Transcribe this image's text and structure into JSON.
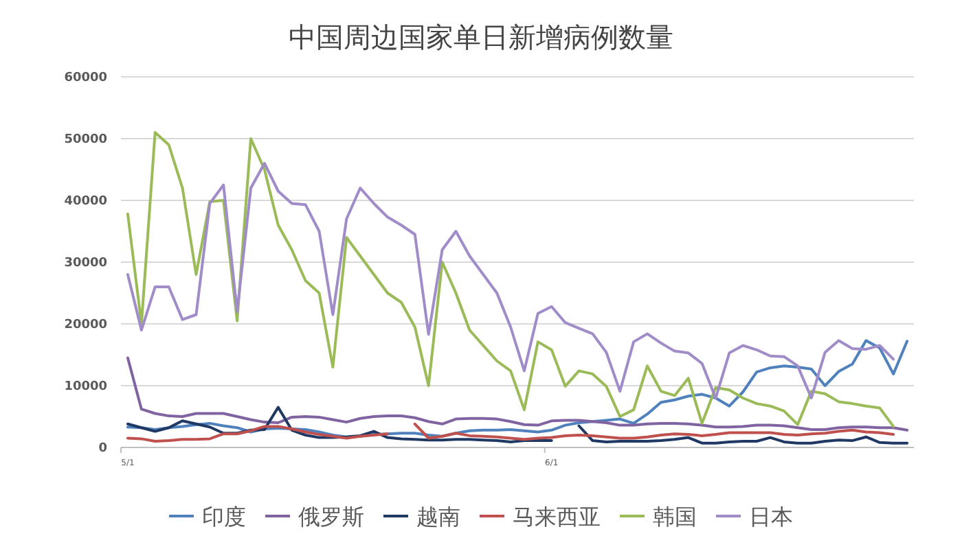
{
  "chart_data": {
    "type": "line",
    "title": "中国周边国家单日新增病例数量",
    "categories": [
      "5/1",
      null,
      null,
      null,
      null,
      null,
      null,
      null,
      null,
      null,
      null,
      null,
      null,
      null,
      null,
      null,
      null,
      null,
      null,
      null,
      null,
      null,
      null,
      null,
      null,
      null,
      null,
      null,
      null,
      null,
      null,
      "6/1",
      null,
      null,
      null,
      null,
      null,
      null,
      null,
      null,
      null,
      null,
      null,
      null,
      null,
      null,
      null,
      null,
      null,
      null,
      null,
      null,
      null,
      null,
      null,
      null,
      null,
      null
    ],
    "ylim": [
      0,
      60000
    ],
    "yticks": [
      0,
      10000,
      20000,
      30000,
      40000,
      50000,
      60000
    ],
    "grid": "y",
    "legend": "bottom",
    "series": [
      {
        "name": "印度",
        "color": "#4f81bd",
        "values": [
          3300,
          3200,
          2900,
          3200,
          3400,
          3700,
          3900,
          3500,
          3200,
          2500,
          3000,
          3100,
          3000,
          2900,
          2500,
          2000,
          1700,
          1800,
          2100,
          2200,
          2300,
          2300,
          2000,
          1800,
          2300,
          2700,
          2800,
          2800,
          2900,
          2700,
          2500,
          2800,
          3600,
          4000,
          4200,
          4400,
          4600,
          3900,
          5400,
          7300,
          7700,
          8300,
          8600,
          8000,
          6700,
          9000,
          12200,
          12900,
          13200,
          13000,
          12700,
          10000,
          12300,
          13500,
          17300,
          16100,
          11900,
          17200
        ]
      },
      {
        "name": "俄罗斯",
        "color": "#8064a2",
        "values": [
          14500,
          6200,
          5500,
          5100,
          5000,
          5500,
          5500,
          5500,
          5000,
          4500,
          4100,
          4000,
          4900,
          5000,
          4900,
          4500,
          4100,
          4700,
          5000,
          5100,
          5100,
          4800,
          4200,
          3800,
          4600,
          4700,
          4700,
          4600,
          4200,
          3700,
          3600,
          4300,
          4400,
          4400,
          4200,
          4000,
          3600,
          3600,
          3800,
          3900,
          3900,
          3800,
          3600,
          3300,
          3300,
          3400,
          3600,
          3600,
          3500,
          3200,
          2900,
          2900,
          3200,
          3300,
          3300,
          3200,
          3200,
          2800
        ]
      },
      {
        "name": "越南",
        "color": "#1f3864",
        "values": [
          3800,
          3200,
          2600,
          3200,
          4300,
          3800,
          3300,
          2300,
          2300,
          2800,
          2900,
          6500,
          2800,
          2000,
          1600,
          1600,
          1700,
          1900,
          2600,
          1600,
          1400,
          1300,
          1200,
          1200,
          1300,
          1300,
          1200,
          1100,
          900,
          1100,
          1100,
          1100,
          null,
          3500,
          1100,
          900,
          1000,
          1000,
          1000,
          1100,
          1300,
          1600,
          700,
          700,
          900,
          1000,
          1000,
          1600,
          900,
          700,
          700,
          1000,
          1200,
          1100,
          1700,
          800,
          700,
          700
        ]
      },
      {
        "name": "马来西亚",
        "color": "#c0504d",
        "values": [
          1500,
          1400,
          1000,
          1100,
          1300,
          1300,
          1400,
          2200,
          2200,
          2700,
          3400,
          3400,
          3000,
          2500,
          2100,
          1800,
          1500,
          1800,
          2000,
          2200,
          null,
          3800,
          1500,
          1800,
          2300,
          1900,
          1800,
          1700,
          1500,
          1300,
          1500,
          1600,
          1900,
          2000,
          1900,
          1700,
          1500,
          1500,
          1700,
          2000,
          2200,
          2100,
          1900,
          2100,
          2400,
          2400,
          2400,
          2400,
          2100,
          2000,
          2200,
          2300,
          2600,
          2800,
          2500,
          2400,
          2100,
          null
        ]
      },
      {
        "name": "韩国",
        "color": "#9bbb59",
        "values": [
          37800,
          20000,
          51000,
          49000,
          42000,
          28000,
          39800,
          40000,
          20500,
          50000,
          45000,
          36000,
          32000,
          27000,
          25000,
          13000,
          34000,
          31000,
          28000,
          25000,
          23500,
          19500,
          10000,
          30000,
          25000,
          19000,
          16500,
          14000,
          12400,
          6100,
          17100,
          15800,
          9900,
          12400,
          11900,
          9900,
          5000,
          6100,
          13200,
          9100,
          8400,
          11200,
          3900,
          9700,
          9300,
          8000,
          7100,
          6700,
          5900,
          3700,
          9100,
          8700,
          7400,
          7100,
          6700,
          6400,
          3400,
          null
        ]
      },
      {
        "name": "日本",
        "color": "#a08cc8",
        "values": [
          28000,
          19000,
          26000,
          26000,
          20700,
          21500,
          39500,
          42500,
          22000,
          42000,
          46000,
          41500,
          39500,
          39300,
          35000,
          21500,
          37000,
          42000,
          39500,
          37300,
          36000,
          34500,
          18300,
          32000,
          35000,
          31000,
          28000,
          25000,
          19500,
          12400,
          21700,
          22800,
          20200,
          19300,
          18400,
          15400,
          9100,
          17100,
          18400,
          16900,
          15600,
          15300,
          13600,
          8000,
          15300,
          16500,
          15800,
          14800,
          14700,
          13200,
          8000,
          15400,
          17300,
          16000,
          15900,
          16500,
          14300,
          null
        ]
      }
    ]
  }
}
